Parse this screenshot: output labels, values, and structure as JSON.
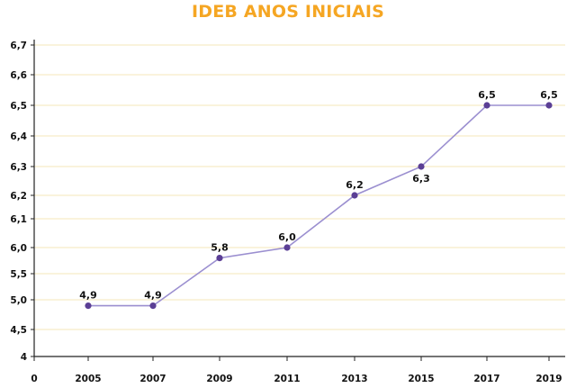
{
  "chart_data": {
    "type": "line",
    "title": "IDEB ANOS INICIAIS",
    "xlabel": "",
    "ylabel": "",
    "x_origin_label": "0",
    "categories": [
      "2005",
      "2007",
      "2009",
      "2011",
      "2013",
      "2015",
      "2017",
      "2019"
    ],
    "values": [
      4.9,
      4.9,
      5.8,
      6.0,
      6.2,
      6.3,
      6.5,
      6.5
    ],
    "value_labels": [
      "4,9",
      "4,9",
      "5,8",
      "6,0",
      "6,2",
      "6,3",
      "6,5",
      "6,5"
    ],
    "label_positions": [
      "above",
      "above",
      "above",
      "above",
      "above",
      "below",
      "above",
      "above"
    ],
    "y_ticks": [
      {
        "value": 4.0,
        "label": "4"
      },
      {
        "value": 4.5,
        "label": "4,5"
      },
      {
        "value": 5.0,
        "label": "5,0"
      },
      {
        "value": 5.5,
        "label": "5,5"
      },
      {
        "value": 6.0,
        "label": "6,0"
      },
      {
        "value": 6.1,
        "label": "6,1"
      },
      {
        "value": 6.2,
        "label": "6,2"
      },
      {
        "value": 6.3,
        "label": "6,3"
      },
      {
        "value": 6.4,
        "label": "6,4"
      },
      {
        "value": 6.5,
        "label": "6,5"
      },
      {
        "value": 6.6,
        "label": "6,6"
      },
      {
        "value": 6.7,
        "label": "6,7"
      }
    ],
    "grid": true,
    "colors": {
      "title": "#F5A623",
      "line": "#9B8FD0",
      "marker": "#5B3F95",
      "grid": "#F6E7B8",
      "axis": "#222222"
    }
  }
}
